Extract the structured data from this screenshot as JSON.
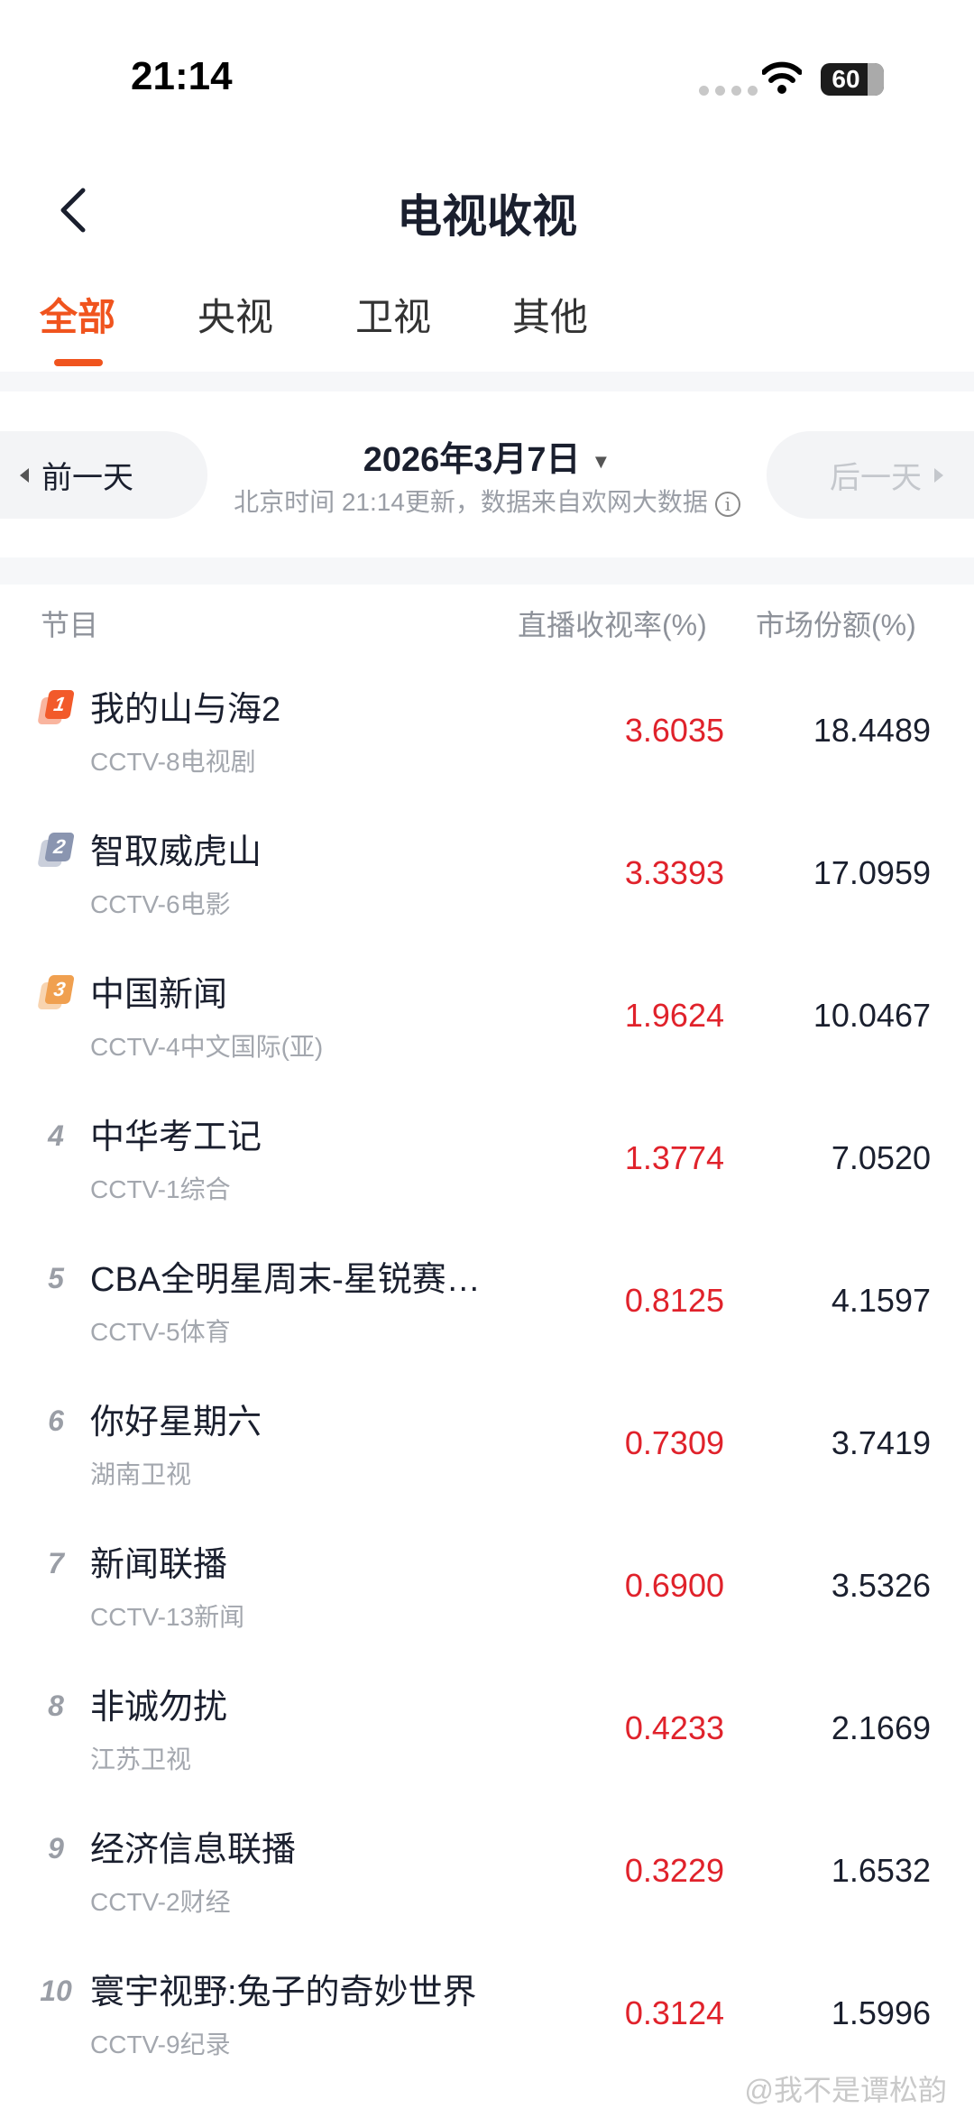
{
  "status_bar": {
    "time": "21:14",
    "battery": "60"
  },
  "header": {
    "title": "电视收视"
  },
  "tabs": [
    {
      "label": "全部",
      "active": true
    },
    {
      "label": "央视"
    },
    {
      "label": "卫视"
    },
    {
      "label": "其他"
    }
  ],
  "date_nav": {
    "prev": "前一天",
    "date": "2026年3月7日",
    "next": "后一天",
    "subtitle": "北京时间 21:14更新，数据来自欢网大数据"
  },
  "table": {
    "headers": [
      "节目",
      "直播收视率(%)",
      "市场份额(%)"
    ],
    "rows": [
      {
        "rank": "1",
        "name": "我的山与海2",
        "channel": "CCTV-8电视剧",
        "rating": "3.6035",
        "share": "18.4489"
      },
      {
        "rank": "2",
        "name": "智取威虎山",
        "channel": "CCTV-6电影",
        "rating": "3.3393",
        "share": "17.0959"
      },
      {
        "rank": "3",
        "name": "中国新闻",
        "channel": "CCTV-4中文国际(亚)",
        "rating": "1.9624",
        "share": "10.0467"
      },
      {
        "rank": "4",
        "name": "中华考工记",
        "channel": "CCTV-1综合",
        "rating": "1.3774",
        "share": "7.0520"
      },
      {
        "rank": "5",
        "name": "CBA全明星周末-星锐赛…",
        "channel": "CCTV-5体育",
        "rating": "0.8125",
        "share": "4.1597"
      },
      {
        "rank": "6",
        "name": "你好星期六",
        "channel": "湖南卫视",
        "rating": "0.7309",
        "share": "3.7419"
      },
      {
        "rank": "7",
        "name": "新闻联播",
        "channel": "CCTV-13新闻",
        "rating": "0.6900",
        "share": "3.5326"
      },
      {
        "rank": "8",
        "name": "非诚勿扰",
        "channel": "江苏卫视",
        "rating": "0.4233",
        "share": "2.1669"
      },
      {
        "rank": "9",
        "name": "经济信息联播",
        "channel": "CCTV-2财经",
        "rating": "0.3229",
        "share": "1.6532"
      },
      {
        "rank": "10",
        "name": "寰宇视野:兔子的奇妙世界",
        "channel": "CCTV-9纪录",
        "rating": "0.3124",
        "share": "1.5996"
      }
    ]
  },
  "colors": {
    "accent": "#f0541e",
    "rating": "#e0222b",
    "badge1": "#f25a2a",
    "badge2": "#8a95b0",
    "badge3": "#f0a050"
  },
  "watermark": "@我不是谭松韵"
}
